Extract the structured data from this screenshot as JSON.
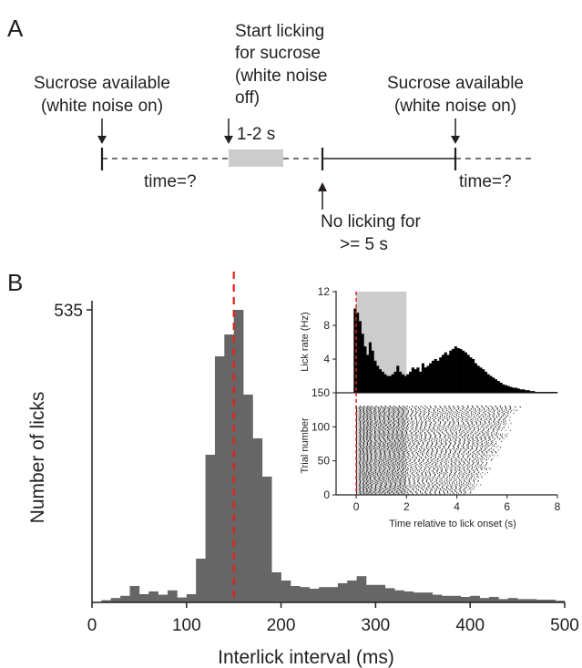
{
  "panelA": {
    "label": "A",
    "left_event": [
      "Sucrose available",
      "(white noise on)"
    ],
    "mid_event": [
      "Start licking",
      "for sucrose",
      "(white noise",
      "off)"
    ],
    "duration": "1-2 s",
    "right_event": [
      "Sucrose available",
      "(white noise on)"
    ],
    "time_left": "time=?",
    "time_right": "time=?",
    "no_lick": [
      "No licking for",
      ">= 5 s"
    ]
  },
  "panelB": {
    "label": "B"
  },
  "chart_data": [
    {
      "type": "bar",
      "title": "",
      "xlabel": "Interlick interval (ms)",
      "ylabel": "Number of licks",
      "xlim": [
        0,
        500
      ],
      "ylim": [
        0,
        535
      ],
      "xticks": [
        0,
        100,
        200,
        300,
        400,
        500
      ],
      "yticks": [
        535
      ],
      "bin_width": 10,
      "bin_starts": [
        10,
        20,
        30,
        40,
        50,
        60,
        70,
        80,
        90,
        100,
        110,
        120,
        130,
        140,
        150,
        160,
        170,
        180,
        190,
        200,
        210,
        220,
        230,
        240,
        250,
        260,
        270,
        280,
        290,
        300,
        310,
        320,
        330,
        340,
        350,
        360,
        370,
        380,
        390,
        400,
        410,
        420,
        430,
        440,
        450,
        460,
        470,
        480,
        490
      ],
      "values": [
        4,
        8,
        12,
        30,
        15,
        20,
        14,
        22,
        9,
        15,
        80,
        270,
        450,
        490,
        535,
        380,
        300,
        230,
        55,
        40,
        30,
        28,
        25,
        28,
        28,
        35,
        40,
        48,
        32,
        32,
        26,
        22,
        20,
        18,
        18,
        14,
        12,
        12,
        10,
        12,
        8,
        10,
        6,
        8,
        6,
        6,
        5,
        5,
        3
      ],
      "annotations": [
        {
          "type": "vline",
          "x": 150,
          "color": "#e2231a",
          "style": "dashed"
        }
      ],
      "colors": {
        "bars": "#666666",
        "marker": "#e2231a"
      }
    },
    {
      "type": "bar",
      "title": "",
      "xlabel": "",
      "ylabel": "Lick rate (Hz)",
      "xlim": [
        -0.8,
        8
      ],
      "ylim": [
        0,
        12
      ],
      "yticks": [
        4,
        8,
        12
      ],
      "bin_width": 0.1,
      "x_start": -0.1,
      "values": [
        10.0,
        9.5,
        8.5,
        7.0,
        5.5,
        4.5,
        6.0,
        5.0,
        3.8,
        3.2,
        2.8,
        2.5,
        2.2,
        2.0,
        2.0,
        2.2,
        2.5,
        3.2,
        2.5,
        2.2,
        2.0,
        2.2,
        2.5,
        3.0,
        2.8,
        3.0,
        2.5,
        3.5,
        3.0,
        3.2,
        3.5,
        3.8,
        4.0,
        3.8,
        4.2,
        4.5,
        4.8,
        4.5,
        5.0,
        5.2,
        5.5,
        5.3,
        5.2,
        5.0,
        4.8,
        4.5,
        4.2,
        4.0,
        3.5,
        3.2,
        3.0,
        2.8,
        2.5,
        2.2,
        2.0,
        1.8,
        1.6,
        1.4,
        1.2,
        1.0,
        0.9,
        0.8,
        0.7,
        0.6,
        0.6,
        0.5,
        0.4,
        0.4,
        0.3,
        0.3,
        0.2,
        0.2,
        0.1,
        0.1,
        0.1,
        0.1,
        0.1,
        0.1,
        0.1,
        0.1,
        0.1
      ],
      "shaded_region": [
        0,
        2
      ],
      "annotations": [
        {
          "type": "vline",
          "x": 0,
          "color": "#e2231a",
          "style": "dashed"
        }
      ]
    },
    {
      "type": "scatter",
      "title": "",
      "subtype": "raster",
      "xlabel": "Time relative to lick onset (s)",
      "ylabel": "Trial number",
      "xlim": [
        -0.8,
        8
      ],
      "ylim": [
        0,
        150
      ],
      "xticks": [
        0,
        2,
        4,
        6,
        8
      ],
      "yticks": [
        0,
        50,
        100,
        150
      ],
      "n_trials": 130,
      "shaded_region": [
        0,
        2
      ]
    }
  ]
}
